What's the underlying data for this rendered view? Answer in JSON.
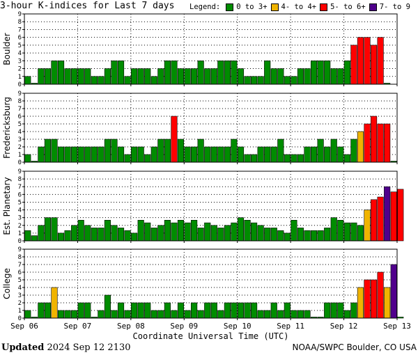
{
  "title": "3-hour K-indices for Last 7 days",
  "legend": {
    "label": "Legend:",
    "items": [
      {
        "label": "0 to 3+",
        "color": "#008c00"
      },
      {
        "label": "4- to 4+",
        "color": "#f0b400"
      },
      {
        "label": "5- to 6+",
        "color": "#ff0000"
      },
      {
        "label": "7- to 9",
        "color": "#50008c"
      }
    ]
  },
  "footer": {
    "updated_label": "Updated",
    "updated_value": "2024 Sep 12 2130",
    "source": "NOAA/SWPC Boulder, CO USA"
  },
  "chart_data": {
    "type": "bar",
    "xlabel": "Coordinate Universal Time (UTC)",
    "x_ticks": [
      "Sep 06",
      "Sep 07",
      "Sep 08",
      "Sep 09",
      "Sep 10",
      "Sep 11",
      "Sep 12",
      "Sep 13"
    ],
    "ylim": [
      0,
      9
    ],
    "y_ticks": [
      0,
      1,
      2,
      3,
      4,
      5,
      6,
      7,
      8,
      9
    ],
    "grid": true,
    "panels": [
      {
        "name": "Boulder",
        "values": [
          1,
          0,
          2,
          2,
          3,
          3,
          2,
          2,
          2,
          2,
          1,
          1,
          2,
          3,
          3,
          1,
          2,
          2,
          2,
          1,
          2,
          3,
          3,
          2,
          2,
          2,
          3,
          2,
          2,
          3,
          3,
          3,
          2,
          1,
          1,
          1,
          3,
          2,
          2,
          1,
          1,
          2,
          2,
          3,
          3,
          3,
          2,
          2,
          3,
          5,
          6,
          6,
          5,
          6,
          0
        ]
      },
      {
        "name": "Fredericksburg",
        "values": [
          1,
          0,
          2,
          3,
          3,
          2,
          2,
          2,
          2,
          2,
          2,
          2,
          3,
          3,
          2,
          1,
          2,
          2,
          1,
          2,
          3,
          3,
          6,
          3,
          2,
          2,
          3,
          2,
          2,
          2,
          2,
          3,
          2,
          1,
          1,
          2,
          2,
          2,
          3,
          1,
          1,
          1,
          2,
          2,
          3,
          2,
          3,
          2,
          1,
          3,
          4,
          5,
          6,
          5,
          5,
          0
        ]
      },
      {
        "name": "Est. Planetary",
        "values": [
          1.33,
          0.67,
          2,
          3,
          3,
          1,
          1.33,
          2,
          2.67,
          2,
          1.67,
          1.67,
          2.67,
          2,
          1.67,
          1.33,
          1,
          2.67,
          2.33,
          1.67,
          2,
          2.67,
          2.33,
          2.67,
          2.33,
          2.67,
          1.67,
          2.33,
          2,
          1.67,
          2,
          2.33,
          3,
          2.67,
          2.33,
          2,
          1.67,
          1.67,
          1.33,
          1,
          2.67,
          1.67,
          1.33,
          1.33,
          1.33,
          1.67,
          3,
          2.67,
          2.33,
          2.33,
          2,
          4,
          5.33,
          5.67,
          7,
          6.33,
          6.67
        ]
      },
      {
        "name": "College",
        "values": [
          1,
          0,
          2,
          2,
          4,
          1,
          1,
          1,
          2,
          2,
          0,
          1,
          3,
          1,
          2,
          1,
          2,
          2,
          2,
          1,
          1,
          2,
          1,
          2,
          1,
          2,
          1,
          2,
          2,
          1,
          2,
          2,
          2,
          2,
          2,
          1,
          1,
          2,
          1,
          2,
          1,
          1,
          1,
          0,
          0,
          2,
          2,
          2,
          1,
          2,
          4,
          5,
          5,
          6,
          4,
          7,
          0
        ]
      }
    ]
  }
}
